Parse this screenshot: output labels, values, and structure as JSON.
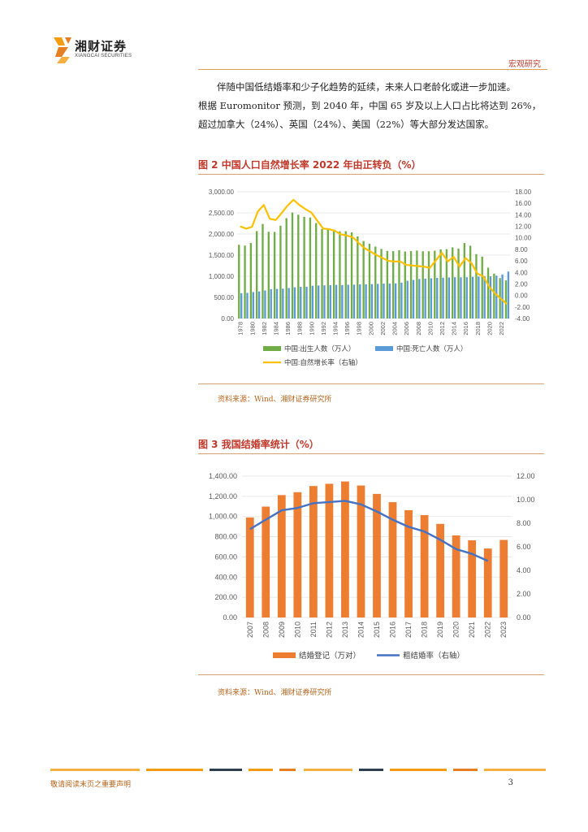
{
  "header": {
    "logo_cn": "湘财证券",
    "logo_en": "XIANGCAI SECURITIES",
    "section": "宏观研究"
  },
  "paragraph": {
    "lines": [
      "伴随中国低结婚率和少子化趋势的延续，未来人口老龄化或进一步加速。",
      "根据 Euromonitor 预测，到 2040 年，中国 65 岁及以上人口占比将达到 26%，",
      "超过加拿大（24%）、英国（24%）、美国（22%）等大部分发达国家。"
    ]
  },
  "figure2": {
    "title": "图 2 中国人口自然增长率 2022 年由正转负（%）",
    "source": "资料来源：Wind、湘财证券研究所"
  },
  "figure3": {
    "title": "图 3 我国结婚率统计（%）",
    "source": "资料来源：Wind、湘财证券研究所"
  },
  "footer": {
    "disclaimer": "敬请阅读末页之重要声明",
    "page": "3"
  },
  "colors": {
    "green": "#70ad47",
    "blue": "#5b9bd5",
    "gold": "#ffc000",
    "orange": "#ed7d31",
    "navy": "#4472c4",
    "accent": "#c0392b"
  },
  "chart_data": [
    {
      "type": "bar",
      "x": [
        "1978",
        "1979",
        "1980",
        "1981",
        "1982",
        "1983",
        "1984",
        "1985",
        "1986",
        "1987",
        "1988",
        "1989",
        "1990",
        "1991",
        "1992",
        "1993",
        "1994",
        "1995",
        "1996",
        "1997",
        "1998",
        "1999",
        "2000",
        "2001",
        "2002",
        "2003",
        "2004",
        "2005",
        "2006",
        "2007",
        "2008",
        "2009",
        "2010",
        "2011",
        "2012",
        "2013",
        "2014",
        "2015",
        "2016",
        "2017",
        "2018",
        "2019",
        "2020",
        "2021",
        "2022",
        "2023"
      ],
      "x_tick_labels": [
        "1978",
        "1980",
        "1982",
        "1984",
        "1986",
        "1988",
        "1990",
        "1992",
        "1994",
        "1996",
        "1998",
        "2000",
        "2002",
        "2004",
        "2006",
        "2008",
        "2010",
        "2012",
        "2014",
        "2016",
        "2018",
        "2020",
        "2022"
      ],
      "series": [
        {
          "name": "中国:出生人数（万人）",
          "axis": "left",
          "kind": "bar",
          "values": [
            1745,
            1726,
            1787,
            2069,
            2237,
            2052,
            2050,
            2196,
            2374,
            2508,
            2457,
            2407,
            2391,
            2258,
            2119,
            2126,
            2104,
            2063,
            2067,
            2038,
            1942,
            1834,
            1771,
            1702,
            1647,
            1599,
            1593,
            1617,
            1585,
            1595,
            1608,
            1591,
            1592,
            1604,
            1635,
            1640,
            1683,
            1655,
            1786,
            1723,
            1523,
            1465,
            1202,
            1062,
            956,
            902
          ]
        },
        {
          "name": "中国:死亡人数（万人）",
          "axis": "left",
          "kind": "bar",
          "values": [
            599,
            607,
            626,
            640,
            663,
            695,
            700,
            706,
            722,
            738,
            749,
            751,
            775,
            781,
            785,
            788,
            796,
            791,
            799,
            801,
            807,
            809,
            814,
            819,
            826,
            826,
            832,
            849,
            892,
            913,
            935,
            943,
            951,
            960,
            966,
            972,
            977,
            975,
            977,
            986,
            993,
            998,
            998,
            1014,
            1041,
            1110
          ]
        },
        {
          "name": "中国:自然增长率（右轴）",
          "axis": "right",
          "kind": "line",
          "values": [
            12.0,
            11.6,
            11.9,
            14.6,
            15.7,
            13.3,
            13.1,
            14.3,
            15.6,
            16.6,
            15.7,
            15.0,
            14.4,
            13.0,
            11.6,
            11.5,
            11.2,
            10.6,
            10.4,
            10.1,
            9.1,
            8.2,
            7.6,
            7.0,
            6.5,
            6.0,
            5.9,
            5.9,
            5.3,
            5.2,
            5.1,
            5.0,
            4.8,
            6.1,
            7.4,
            5.9,
            6.7,
            5.0,
            6.5,
            5.6,
            3.8,
            3.3,
            1.5,
            0.3,
            -0.6,
            -1.5
          ]
        }
      ],
      "y_left": {
        "min": 0,
        "max": 3000,
        "ticks": [
          "0.00",
          "500.00",
          "1,000.00",
          "1,500.00",
          "2,000.00",
          "2,500.00",
          "3,000.00"
        ]
      },
      "y_right": {
        "min": -4,
        "max": 18,
        "ticks": [
          "-4.00",
          "-2.00",
          "0.00",
          "2.00",
          "4.00",
          "6.00",
          "8.00",
          "10.00",
          "12.00",
          "14.00",
          "16.00",
          "18.00"
        ]
      },
      "legend": {
        "placement": "bottom",
        "items": [
          "中国:出生人数（万人）",
          "中国:死亡人数（万人）",
          "中国:自然增长率（右轴）"
        ]
      }
    },
    {
      "type": "bar",
      "x": [
        "2007",
        "2008",
        "2009",
        "2010",
        "2011",
        "2012",
        "2013",
        "2014",
        "2015",
        "2016",
        "2017",
        "2018",
        "2019",
        "2020",
        "2021",
        "2022",
        "2023"
      ],
      "series": [
        {
          "name": "结婚登记（万对）",
          "axis": "left",
          "kind": "bar",
          "values": [
            991,
            1098,
            1212,
            1241,
            1302,
            1324,
            1347,
            1307,
            1224,
            1142,
            1063,
            1014,
            927,
            813,
            764,
            683,
            768
          ]
        },
        {
          "name": "粗结婚率（右轴）",
          "axis": "right",
          "kind": "line",
          "values": [
            7.5,
            8.3,
            9.1,
            9.3,
            9.7,
            9.8,
            9.9,
            9.6,
            9.0,
            8.3,
            7.7,
            7.3,
            6.6,
            5.8,
            5.4,
            4.8,
            null
          ]
        }
      ],
      "y_left": {
        "min": 0,
        "max": 1400,
        "ticks": [
          "0.00",
          "200.00",
          "400.00",
          "600.00",
          "800.00",
          "1,000.00",
          "1,200.00",
          "1,400.00"
        ]
      },
      "y_right": {
        "min": 0,
        "max": 12,
        "ticks": [
          "0.00",
          "2.00",
          "4.00",
          "6.00",
          "8.00",
          "10.00",
          "12.00"
        ]
      },
      "legend": {
        "placement": "bottom",
        "items": [
          "结婚登记（万对）",
          "粗结婚率（右轴）"
        ]
      }
    }
  ]
}
